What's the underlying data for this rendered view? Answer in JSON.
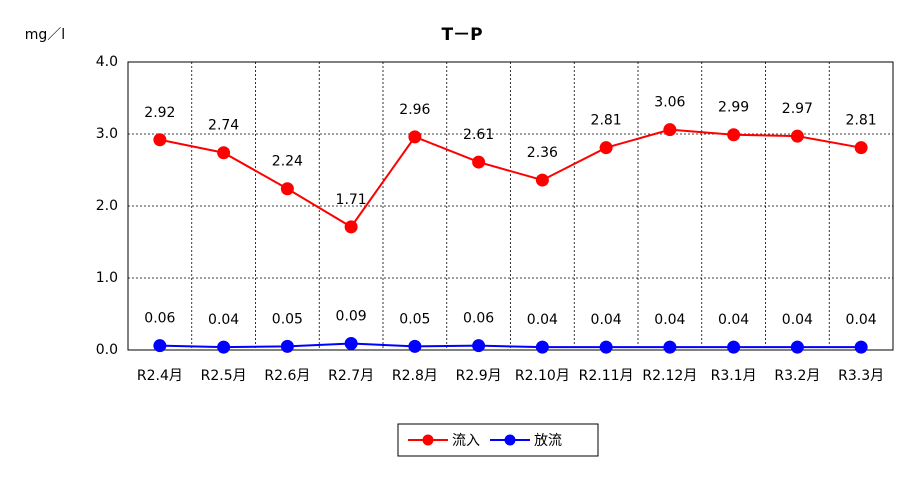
{
  "chart_data": {
    "type": "line",
    "title": "T－P",
    "y_label": "mg／l",
    "categories": [
      "R2.4月",
      "R2.5月",
      "R2.6月",
      "R2.7月",
      "R2.8月",
      "R2.9月",
      "R2.10月",
      "R2.11月",
      "R2.12月",
      "R3.1月",
      "R3.2月",
      "R3.3月"
    ],
    "series": [
      {
        "name": "流入",
        "color": "#ff0000",
        "values": [
          2.92,
          2.74,
          2.24,
          1.71,
          2.96,
          2.61,
          2.36,
          2.81,
          3.06,
          2.99,
          2.97,
          2.81
        ]
      },
      {
        "name": "放流",
        "color": "#0000ff",
        "values": [
          0.06,
          0.04,
          0.05,
          0.09,
          0.05,
          0.06,
          0.04,
          0.04,
          0.04,
          0.04,
          0.04,
          0.04
        ]
      }
    ],
    "ylim": [
      0,
      4
    ],
    "yticks": [
      {
        "value": 0,
        "label": "0.0"
      },
      {
        "value": 1,
        "label": "1.0"
      },
      {
        "value": 2,
        "label": "2.0"
      },
      {
        "value": 3,
        "label": "3.0"
      },
      {
        "value": 4,
        "label": "4.0"
      }
    ],
    "grid": true,
    "legend": "bottom"
  }
}
